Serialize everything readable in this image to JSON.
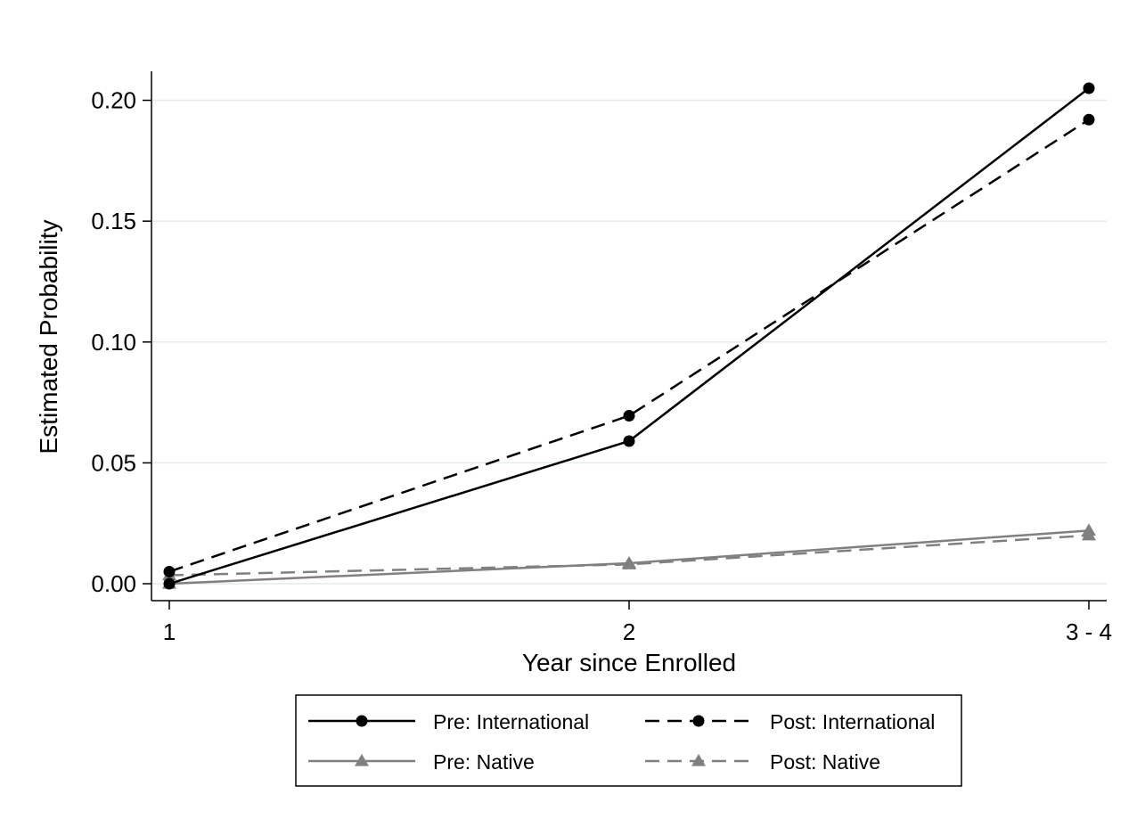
{
  "chart_data": {
    "type": "line",
    "title": "",
    "xlabel": "Year since Enrolled",
    "ylabel": "Estimated Probability",
    "categories": [
      "1",
      "2",
      "3 - 4"
    ],
    "ylim": [
      -0.007,
      0.212
    ],
    "yticks": [
      0.0,
      0.05,
      0.1,
      0.15,
      0.2
    ],
    "ytick_labels": [
      "0.00",
      "0.05",
      "0.10",
      "0.15",
      "0.20"
    ],
    "grid": true,
    "legend_position": "bottom",
    "series": [
      {
        "name": "Pre: International",
        "values": [
          0.0,
          0.059,
          0.205
        ],
        "color": "#000000",
        "dash": "solid",
        "marker": "circle"
      },
      {
        "name": "Post: International",
        "values": [
          0.005,
          0.0695,
          0.192
        ],
        "color": "#000000",
        "dash": "dashed",
        "marker": "circle"
      },
      {
        "name": "Pre: Native",
        "values": [
          0.0,
          0.0085,
          0.022
        ],
        "color": "#808080",
        "dash": "solid",
        "marker": "triangle"
      },
      {
        "name": "Post: Native",
        "values": [
          0.0035,
          0.008,
          0.02
        ],
        "color": "#808080",
        "dash": "dashed",
        "marker": "triangle"
      }
    ]
  }
}
